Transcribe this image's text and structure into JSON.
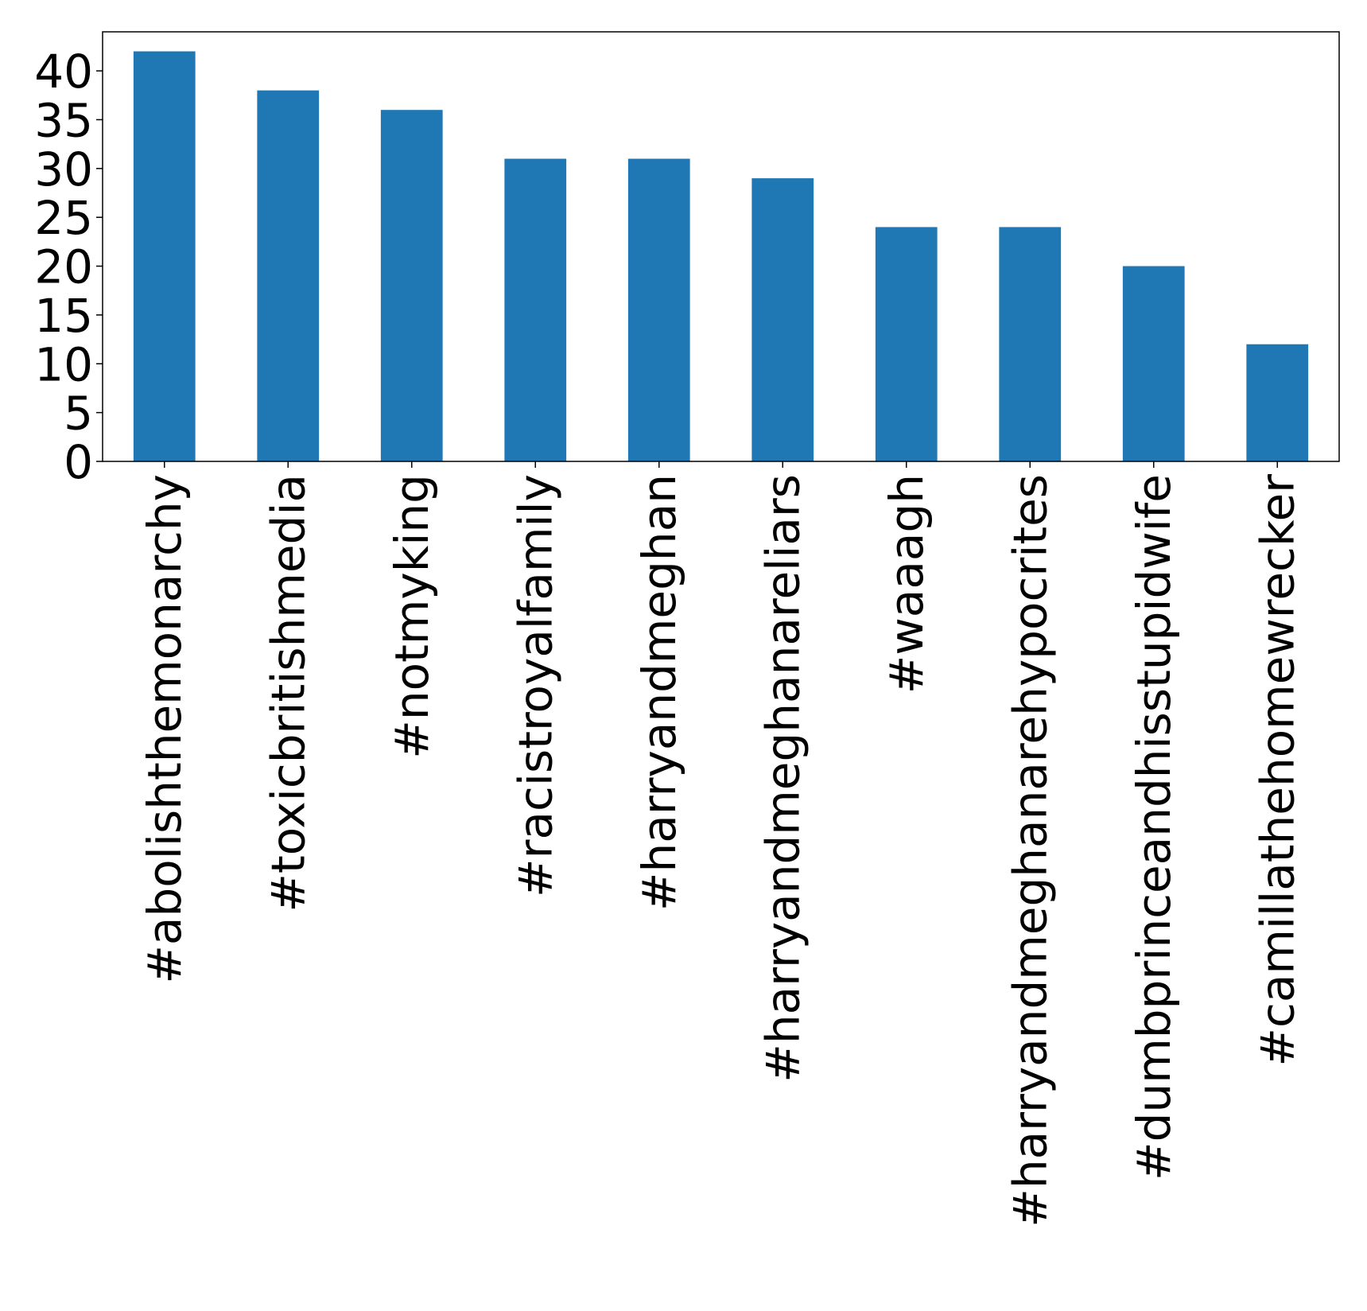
{
  "chart_data": {
    "type": "bar",
    "title": "",
    "xlabel": "",
    "ylabel": "",
    "categories": [
      "#abolishthemonarchy",
      "#toxicbritishmedia",
      "#notmyking",
      "#racistroyalfamily",
      "#harryandmeghan",
      "#harryandmeghanareliars",
      "#waaagh",
      "#harryandmeghanarehypocrites",
      "#dumbprinceandhisstupidwife",
      "#camillathehomewrecker"
    ],
    "values": [
      42,
      38,
      36,
      31,
      31,
      29,
      24,
      24,
      20,
      12
    ],
    "ylim": [
      0,
      44
    ],
    "yticks": [
      "0",
      "5",
      "10",
      "15",
      "20",
      "25",
      "30",
      "35",
      "40"
    ],
    "bar_color": "#1f77b4",
    "grid": false,
    "legend": "none"
  }
}
